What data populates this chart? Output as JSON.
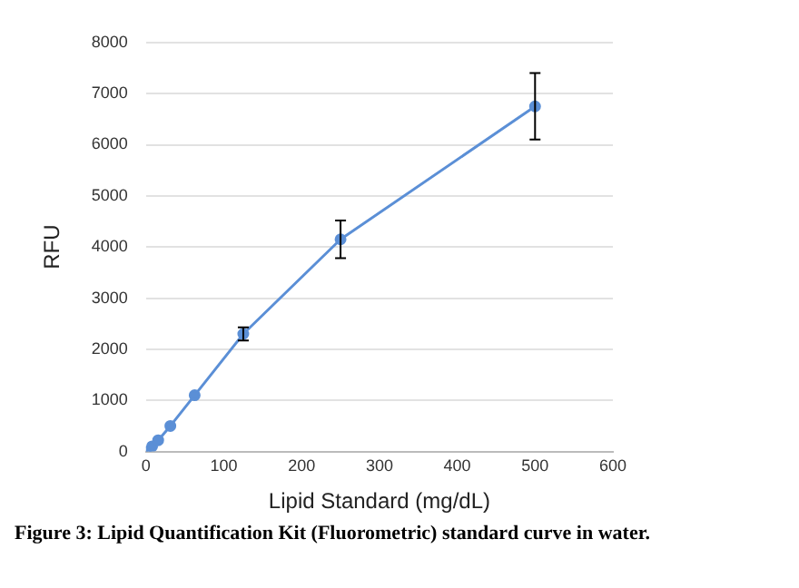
{
  "chart_data": {
    "type": "line",
    "xlabel": "Lipid Standard (mg/dL)",
    "ylabel": "RFU",
    "annotations": [
      "Figure 3: Lipid Quantification Kit (Fluorometric) standard curve in water."
    ],
    "x": [
      0,
      3.9,
      7.8,
      15.6,
      31.25,
      62.5,
      125,
      250,
      500
    ],
    "series": [
      {
        "color": "#5b8fd6",
        "values": [
          0,
          null,
          100,
          220,
          500,
          1100,
          2300,
          4150,
          6750
        ],
        "errors": [
          null,
          null,
          null,
          null,
          null,
          null,
          130,
          370,
          650
        ]
      }
    ],
    "xlim": [
      0,
      600
    ],
    "xticks": [
      0,
      100,
      200,
      300,
      400,
      500,
      600
    ],
    "ylim": [
      0,
      8000
    ],
    "yticks": [
      0,
      1000,
      2000,
      3000,
      4000,
      5000,
      6000,
      7000,
      8000
    ],
    "grid": "y",
    "legend": false,
    "marker": "circle",
    "line_style": "solid"
  }
}
